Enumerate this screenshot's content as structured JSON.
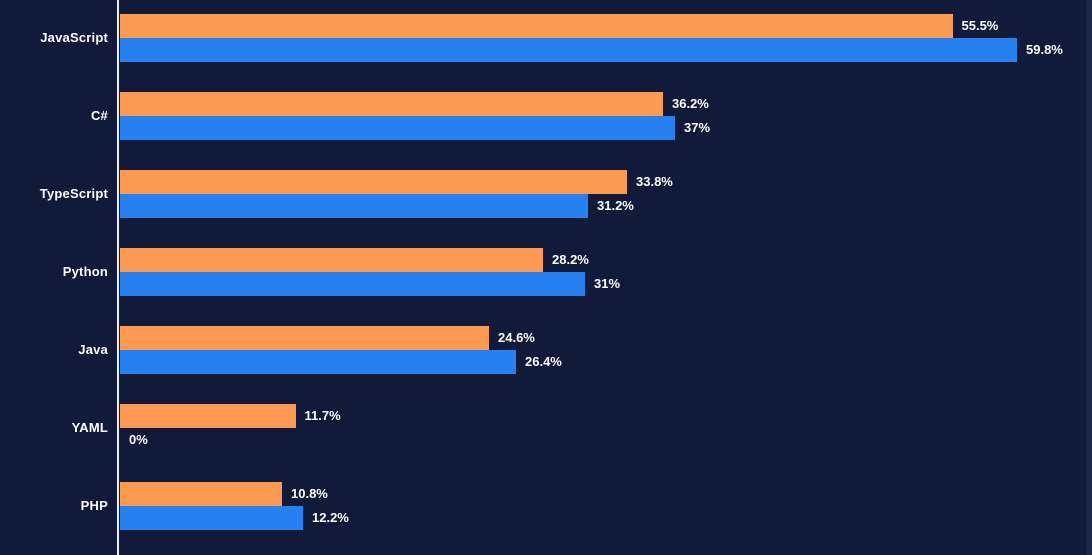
{
  "colors": {
    "background": "#121a3a",
    "axis_line": "#eceef2",
    "right_strip": "#1d2647",
    "text": "#ffffff",
    "series_1_color": "#fd9a51",
    "series_2_color": "#2680f0"
  },
  "chart_data": {
    "type": "bar",
    "orientation": "horizontal",
    "title": "",
    "xlabel": "",
    "ylabel": "",
    "grid": false,
    "legend": "none",
    "xlim": [
      0,
      64.8
    ],
    "categories": [
      "JavaScript",
      "C#",
      "TypeScript",
      "Python",
      "Java",
      "YAML",
      "PHP"
    ],
    "series": [
      {
        "name": "series-1",
        "color": "#fd9a51",
        "values": [
          55.5,
          36.2,
          33.8,
          28.2,
          24.6,
          11.7,
          10.8
        ],
        "labels": [
          "55.5%",
          "36.2%",
          "33.8%",
          "28.2%",
          "24.6%",
          "11.7%",
          "10.8%"
        ]
      },
      {
        "name": "series-2",
        "color": "#2680f0",
        "values": [
          59.8,
          37,
          31.2,
          31,
          26.4,
          0,
          12.2
        ],
        "labels": [
          "59.8%",
          "37%",
          "31.2%",
          "31%",
          "26.4%",
          "0%",
          "12.2%"
        ]
      }
    ]
  }
}
